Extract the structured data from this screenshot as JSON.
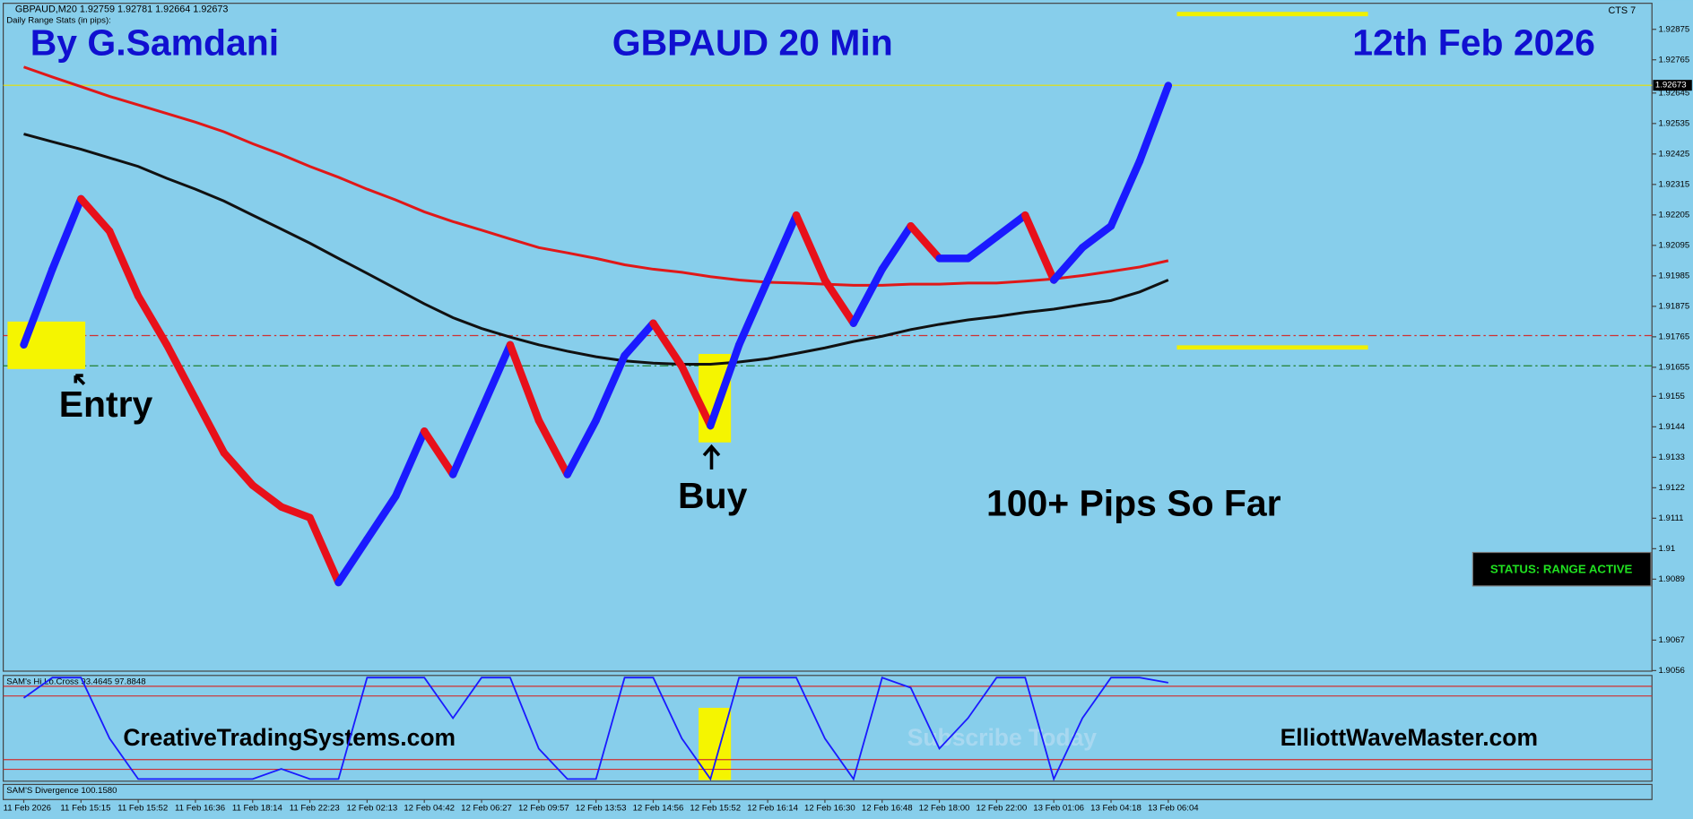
{
  "chart_data": {
    "type": "line",
    "title": "GBPAUD 20 Min",
    "author": "By G.Samdani",
    "date": "12th Feb 2026",
    "symbol_info": "GBPAUD,M20  1.92759 1.92781 1.92664 1.92673",
    "stats_label": "Daily Range Stats (in pips):",
    "platform": "CTS 7",
    "annotations": [
      "Entry",
      "Buy",
      "100+ Pips So Far"
    ],
    "watermarks": [
      "CreativeTradingSystems.com",
      "Subscribe Today",
      "ElliottWaveMaster.com"
    ],
    "status": "STATUS: RANGE ACTIVE",
    "categories": [
      "11 Feb 2026",
      null,
      "11 Feb 15:15",
      null,
      "11 Feb 15:52",
      null,
      "11 Feb 16:36",
      null,
      "11 Feb 18:14",
      null,
      "11 Feb 22:23",
      null,
      "12 Feb 02:13",
      null,
      "12 Feb 04:42",
      null,
      "12 Feb 06:27",
      null,
      "12 Feb 09:57",
      null,
      "12 Feb 13:53",
      null,
      "12 Feb 14:56",
      null,
      "12 Feb 15:52",
      null,
      "12 Feb 16:14",
      null,
      "12 Feb 16:30",
      null,
      "12 Feb 16:48",
      null,
      "12 Feb 18:00",
      null,
      "12 Feb 22:00",
      null,
      "13 Feb 01:06",
      null,
      "13 Feb 04:18",
      null,
      "13 Feb 06:04"
    ],
    "series": [
      {
        "name": "GBPAUD",
        "color": "#1a1aff",
        "down_color": "#e8101a",
        "values": [
          1.91736,
          1.92009,
          1.92263,
          1.92146,
          1.91912,
          1.91736,
          1.91541,
          1.91346,
          1.91229,
          1.91151,
          1.91112,
          1.90878,
          1.91034,
          1.9119,
          1.91424,
          1.91268,
          1.91502,
          1.91736,
          1.91463,
          1.91268,
          1.91463,
          1.91697,
          1.91814,
          1.91658,
          1.91444,
          1.91736,
          1.9197,
          1.92204,
          1.9197,
          1.91814,
          1.92009,
          1.92165,
          1.92048,
          1.92048,
          1.92126,
          1.92204,
          1.9197,
          1.92087,
          1.92165,
          1.92399,
          1.92672
        ]
      },
      {
        "color": "#e01818",
        "values": [
          1.92739,
          1.92703,
          1.92668,
          1.92633,
          1.92602,
          1.92571,
          1.9254,
          1.92505,
          1.92462,
          1.92423,
          1.9238,
          1.92341,
          1.92298,
          1.92259,
          1.92216,
          1.92181,
          1.9215,
          1.92118,
          1.92087,
          1.92068,
          1.92048,
          1.92025,
          1.92009,
          1.91998,
          1.91982,
          1.9197,
          1.91962,
          1.91959,
          1.91955,
          1.91951,
          1.91951,
          1.91955,
          1.91955,
          1.91959,
          1.91959,
          1.91966,
          1.91974,
          1.91986,
          1.92001,
          1.92017,
          1.9204
        ]
      },
      {
        "color": "#111111",
        "values": [
          1.92497,
          1.92469,
          1.92442,
          1.92411,
          1.9238,
          1.92337,
          1.92298,
          1.92255,
          1.92204,
          1.92154,
          1.92103,
          1.92048,
          1.91994,
          1.91939,
          1.91884,
          1.91834,
          1.91795,
          1.91764,
          1.91736,
          1.91713,
          1.91693,
          1.91678,
          1.9167,
          1.91666,
          1.91666,
          1.91674,
          1.91686,
          1.91705,
          1.91725,
          1.91748,
          1.91767,
          1.91791,
          1.9181,
          1.91826,
          1.91838,
          1.91853,
          1.91865,
          1.91881,
          1.91896,
          1.91927,
          1.9197
        ]
      }
    ],
    "current_price": 1.92673,
    "ylim": [
      1.90558,
      1.92969
    ],
    "yticks": [
      1.92875,
      1.92765,
      1.92645,
      1.92535,
      1.92425,
      1.92315,
      1.92205,
      1.92095,
      1.91985,
      1.91875,
      1.91765,
      1.91655,
      1.9155,
      1.9144,
      1.9133,
      1.9122,
      1.9111,
      1.91,
      1.9089,
      1.9067,
      1.9056
    ],
    "oscillator": {
      "label": "SAM's Hi.Lo.Cross 93.4645 97.8848",
      "color": "#1a1aff",
      "ylim": [
        0,
        100
      ],
      "values": [
        80,
        100,
        100,
        40,
        0,
        0,
        0,
        0,
        0,
        10,
        0,
        0,
        100,
        100,
        100,
        60,
        100,
        100,
        30,
        0,
        0,
        100,
        100,
        40,
        0,
        100,
        100,
        100,
        40,
        0,
        100,
        90,
        30,
        60,
        100,
        100,
        0,
        60,
        100,
        100,
        95
      ]
    },
    "divergence_label": "SAM'S Divergence 100.1580"
  }
}
